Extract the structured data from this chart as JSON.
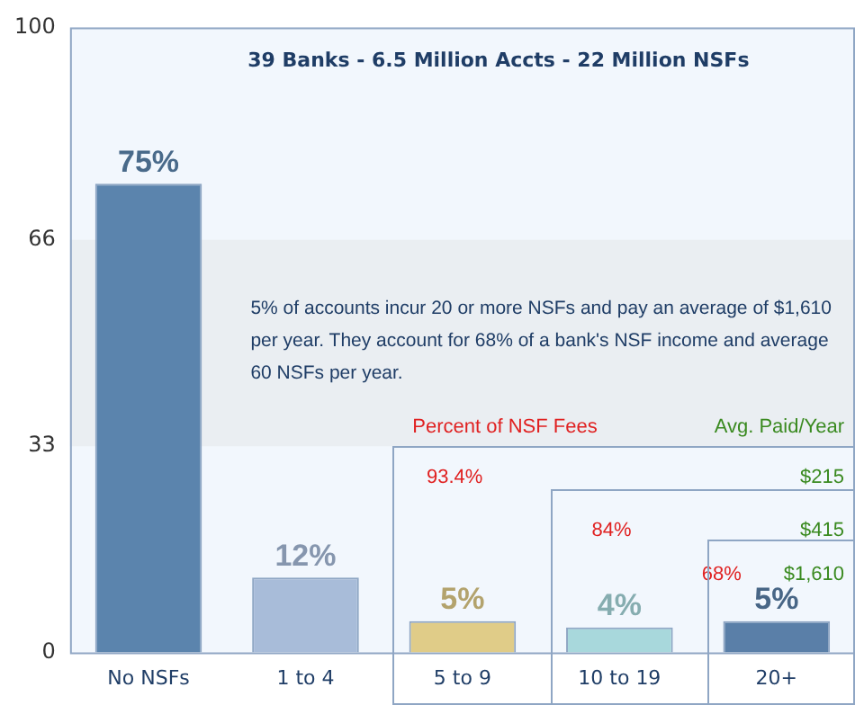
{
  "chart_data": {
    "type": "bar",
    "title": "39 Banks - 6.5 Million Accts - 22 Million NSFs",
    "categories": [
      "No NSFs",
      "1 to 4",
      "5 to 9",
      "10 to 19",
      "20+"
    ],
    "values": [
      75,
      12,
      5,
      4,
      5
    ],
    "colors": [
      "#5b84ad",
      "#a8bcd9",
      "#e0cc88",
      "#a8d8dc",
      "#5a7fa8"
    ],
    "value_labels": [
      "75%",
      "12%",
      "5%",
      "4%",
      "5%"
    ],
    "ylim": [
      0,
      100
    ],
    "yticks": [
      0,
      33,
      66,
      100
    ],
    "grid": false,
    "legend": false,
    "bands": [
      {
        "axis": "y",
        "from": 33,
        "to": 66,
        "color": "#eaeef2"
      }
    ],
    "annotations": [
      "5% of accounts incur 20 or more NSFs and pay an average of $1,610 per year. They account for 68% of a bank's NSF income and average 60 NSFs per year.",
      "Percent of NSF Fees",
      "Avg. Paid/Year",
      "93.4%",
      "$215",
      "84%",
      "$415",
      "68%",
      "$1,610"
    ]
  }
}
